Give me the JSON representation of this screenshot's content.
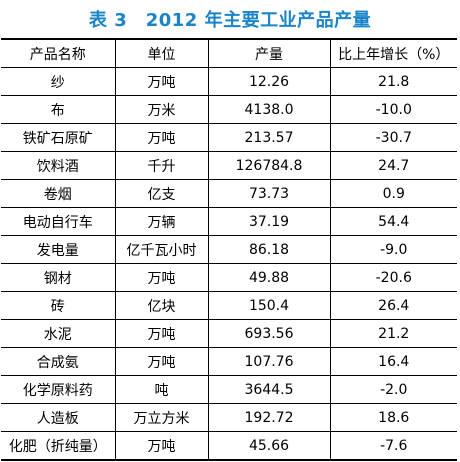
{
  "title": "表 3　2012 年主要工业产品产量",
  "columns": [
    "产品名称",
    "单位",
    "产量",
    "比上年增长（%）"
  ],
  "rows": [
    {
      "name": "纱",
      "unit": "万吨",
      "output": "12.26",
      "growth": "21.8"
    },
    {
      "name": "布",
      "unit": "万米",
      "output": "4138.0",
      "growth": "-10.0"
    },
    {
      "name": "铁矿石原矿",
      "unit": "万吨",
      "output": "213.57",
      "growth": "-30.7"
    },
    {
      "name": "饮料酒",
      "unit": "千升",
      "output": "126784.8",
      "growth": "24.7"
    },
    {
      "name": "卷烟",
      "unit": "亿支",
      "output": "73.73",
      "growth": "0.9"
    },
    {
      "name": "电动自行车",
      "unit": "万辆",
      "output": "37.19",
      "growth": "54.4"
    },
    {
      "name": "发电量",
      "unit": "亿千瓦小时",
      "output": "86.18",
      "growth": "-9.0"
    },
    {
      "name": "钢材",
      "unit": "万吨",
      "output": "49.88",
      "growth": "-20.6"
    },
    {
      "name": "砖",
      "unit": "亿块",
      "output": "150.4",
      "growth": "26.4"
    },
    {
      "name": "水泥",
      "unit": "万吨",
      "output": "693.56",
      "growth": "21.2"
    },
    {
      "name": "合成氨",
      "unit": "万吨",
      "output": "107.76",
      "growth": "16.4"
    },
    {
      "name": "化学原料药",
      "unit": "吨",
      "output": "3644.5",
      "growth": "-2.0"
    },
    {
      "name": "人造板",
      "unit": "万立方米",
      "output": "192.72",
      "growth": "18.6"
    },
    {
      "name": "化肥（折纯量）",
      "unit": "万吨",
      "output": "45.66",
      "growth": "-7.6"
    }
  ]
}
